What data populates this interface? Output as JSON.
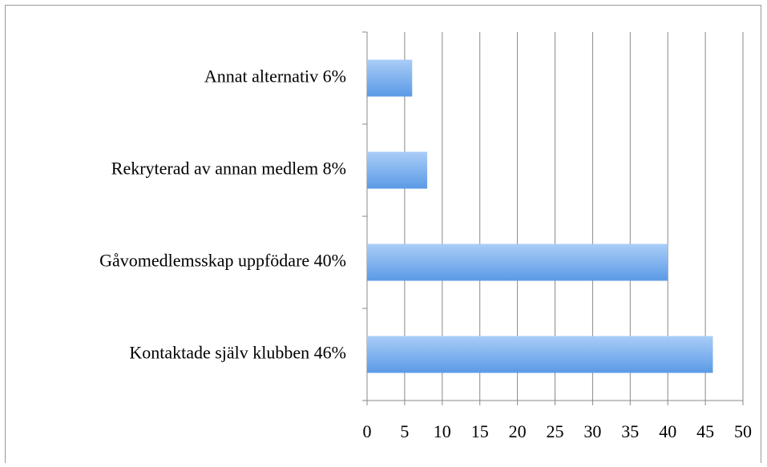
{
  "chart_data": {
    "type": "barh",
    "categories": [
      "Annat alternativ 6%",
      "Rekryterad av annan medlem 8%",
      "Gåvomedlemsskap uppfödare 40%",
      "Kontaktade själv klubben 46%"
    ],
    "values": [
      6,
      8,
      40,
      46
    ],
    "color": "#5b9ae6",
    "xlim": [
      0,
      50
    ],
    "xticks": [
      0,
      5,
      10,
      15,
      20,
      25,
      30,
      35,
      40,
      45,
      50
    ],
    "grid": true
  }
}
